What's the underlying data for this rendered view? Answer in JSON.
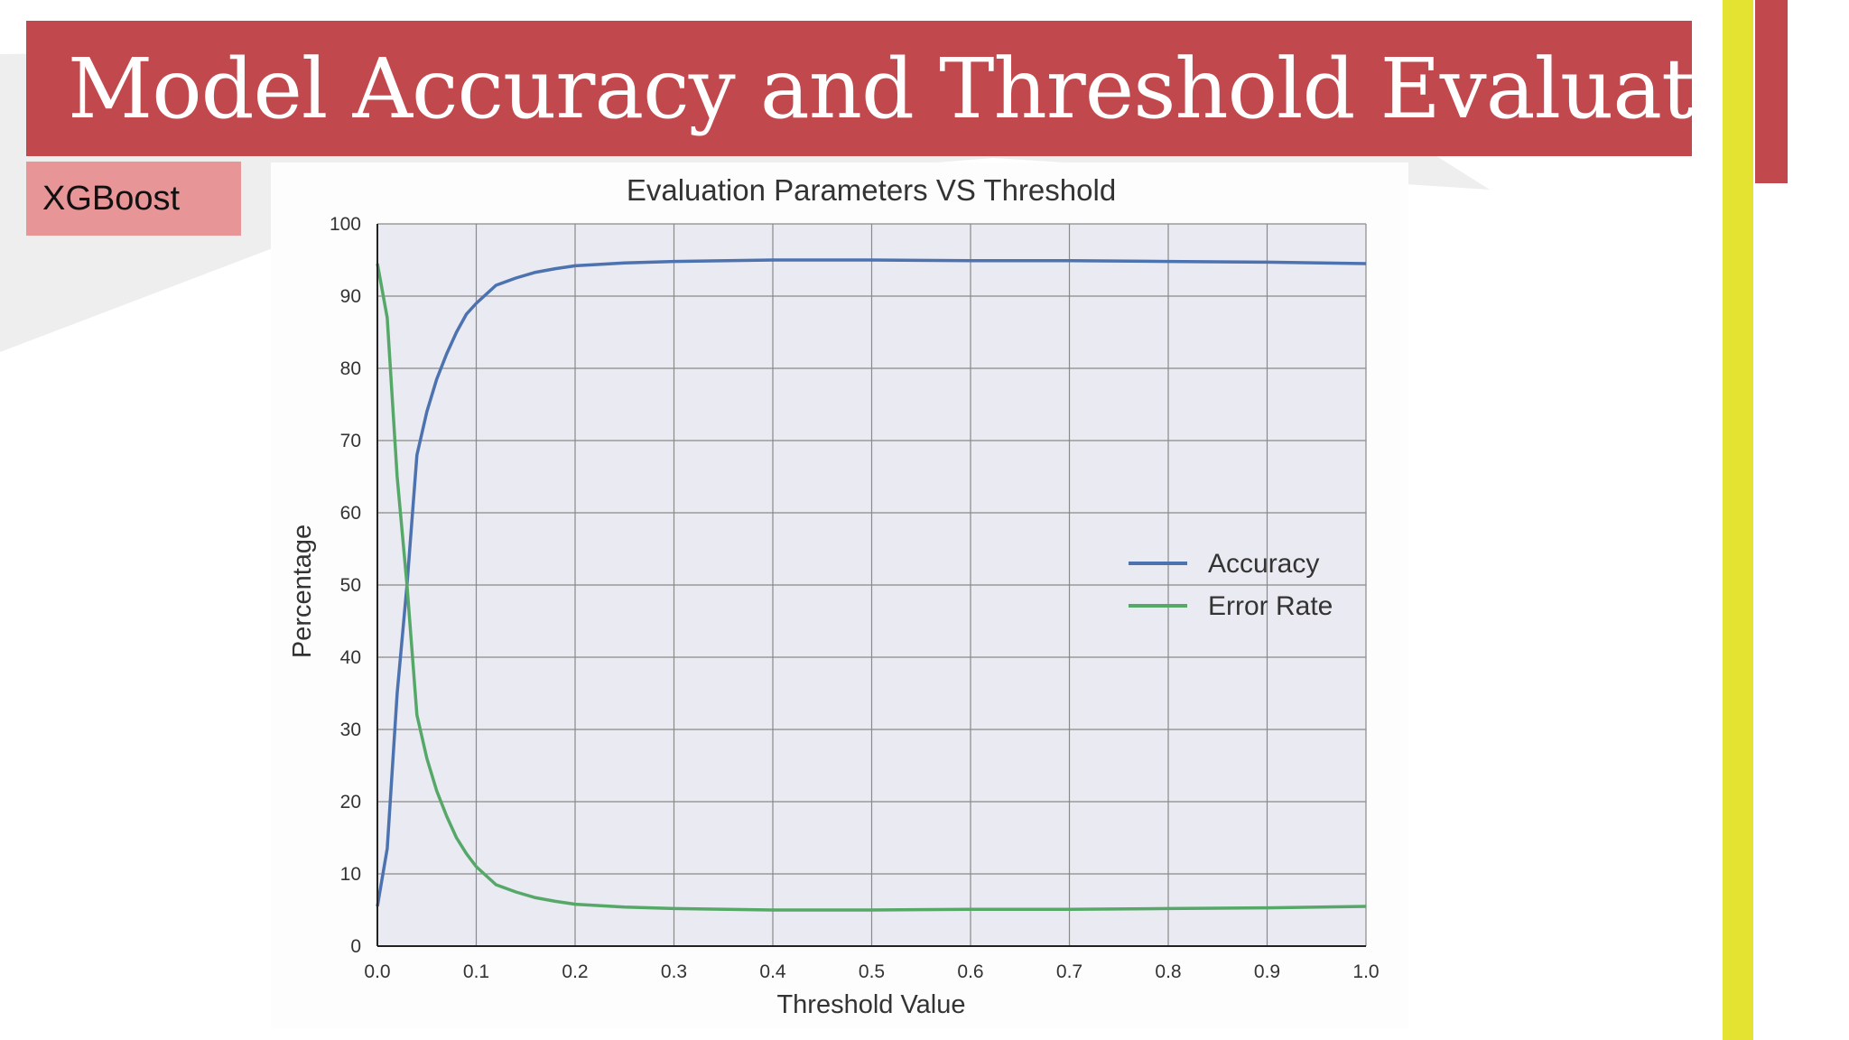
{
  "slide": {
    "title": "Model Accuracy and Threshold Evaluation",
    "tag": "XGBoost"
  },
  "colors": {
    "banner": "#c1484c",
    "tag": "#e79597",
    "yellow_bar": "#e4e332",
    "plot_bg": "#eaeaf2",
    "accuracy": "#4c72b0",
    "error_rate": "#55a868"
  },
  "chart_data": {
    "type": "line",
    "title": "Evaluation Parameters VS Threshold",
    "xlabel": "Threshold Value",
    "ylabel": "Percentage",
    "xlim": [
      0,
      1
    ],
    "ylim": [
      0,
      100
    ],
    "xticks": [
      "0.0",
      "0.1",
      "0.2",
      "0.3",
      "0.4",
      "0.5",
      "0.6",
      "0.7",
      "0.8",
      "0.9",
      "1.0"
    ],
    "yticks": [
      "0",
      "10",
      "20",
      "30",
      "40",
      "50",
      "60",
      "70",
      "80",
      "90",
      "100"
    ],
    "grid": true,
    "legend_position": "center-right",
    "x": [
      0.0,
      0.01,
      0.02,
      0.03,
      0.04,
      0.05,
      0.06,
      0.07,
      0.08,
      0.09,
      0.1,
      0.12,
      0.14,
      0.16,
      0.18,
      0.2,
      0.25,
      0.3,
      0.4,
      0.5,
      0.6,
      0.7,
      0.8,
      0.9,
      1.0
    ],
    "series": [
      {
        "name": "Accuracy",
        "values": [
          5.5,
          13.5,
          35,
          50,
          68,
          74,
          78.5,
          82,
          85,
          87.5,
          89,
          91.5,
          92.5,
          93.3,
          93.8,
          94.2,
          94.6,
          94.8,
          95,
          95,
          94.9,
          94.9,
          94.8,
          94.7,
          94.5
        ]
      },
      {
        "name": "Error Rate",
        "values": [
          94.5,
          87,
          65,
          50,
          32,
          26,
          21.5,
          18,
          15,
          12.8,
          11,
          8.5,
          7.5,
          6.7,
          6.2,
          5.8,
          5.4,
          5.2,
          5,
          5,
          5.1,
          5.1,
          5.2,
          5.3,
          5.5
        ]
      }
    ]
  }
}
